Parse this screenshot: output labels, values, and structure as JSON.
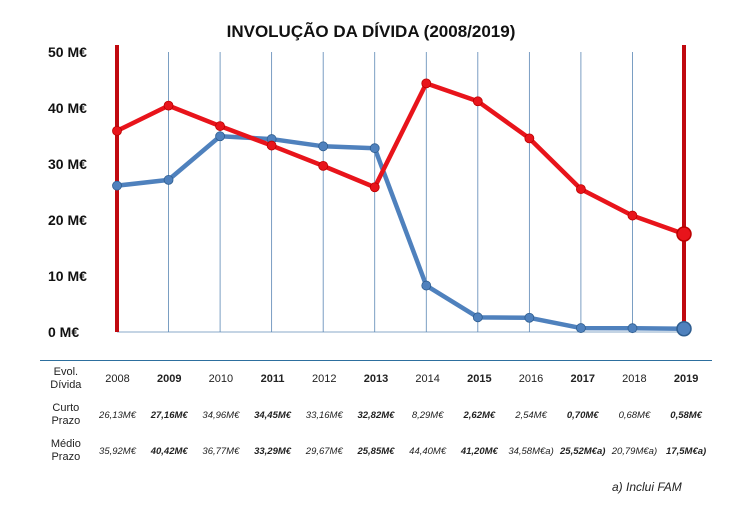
{
  "chart_data": {
    "type": "line",
    "title": "INVOLUÇÃO DA DÍVIDA (2008/2019)",
    "xlabel": "",
    "ylabel": "",
    "ylim": [
      0,
      50
    ],
    "yticks": [
      "0 M€",
      "10 M€",
      "20 M€",
      "30 M€",
      "40 M€",
      "50 M€"
    ],
    "ytick_values": [
      0,
      10,
      20,
      30,
      40,
      50
    ],
    "grid": "vertical",
    "categories": [
      "2008",
      "2009",
      "2010",
      "2011",
      "2012",
      "2013",
      "2014",
      "2015",
      "2016",
      "2017",
      "2018",
      "2019"
    ],
    "series": [
      {
        "color": "#4f81bd",
        "values": [
          26.13,
          27.16,
          34.96,
          34.45,
          33.16,
          32.82,
          8.29,
          2.62,
          2.54,
          0.7,
          0.68,
          0.58
        ]
      },
      {
        "color": "#e8141b",
        "values": [
          35.92,
          40.42,
          36.77,
          33.29,
          29.67,
          25.85,
          44.4,
          41.2,
          34.58,
          25.52,
          20.79,
          17.5
        ]
      }
    ],
    "highlight_color": "#c0090f"
  },
  "table": {
    "header_label": "Evol.\nDívida",
    "short_label": "Curto\nPrazo",
    "medium_label": "Médio\nPrazo",
    "years": [
      "2008",
      "2009",
      "2010",
      "2011",
      "2012",
      "2013",
      "2014",
      "2015",
      "2016",
      "2017",
      "2018",
      "2019"
    ],
    "bold": [
      false,
      true,
      false,
      true,
      false,
      true,
      false,
      true,
      false,
      true,
      false,
      true
    ],
    "short_values": [
      "26,13M€",
      "27,16M€",
      "34,96M€",
      "34,45M€",
      "33,16M€",
      "32,82M€",
      "8,29M€",
      "2,62M€",
      "2,54M€",
      "0,70M€",
      "0,68M€",
      "0,58M€"
    ],
    "medium_values": [
      "35,92M€",
      "40,42M€",
      "36,77M€",
      "33,29M€",
      "29,67M€",
      "25,85M€",
      "44,40M€",
      "41,20M€",
      "34,58M€a)",
      "25,52M€a)",
      "20,79M€a)",
      "17,5M€a)"
    ]
  },
  "footnote": "a) Inclui FAM"
}
